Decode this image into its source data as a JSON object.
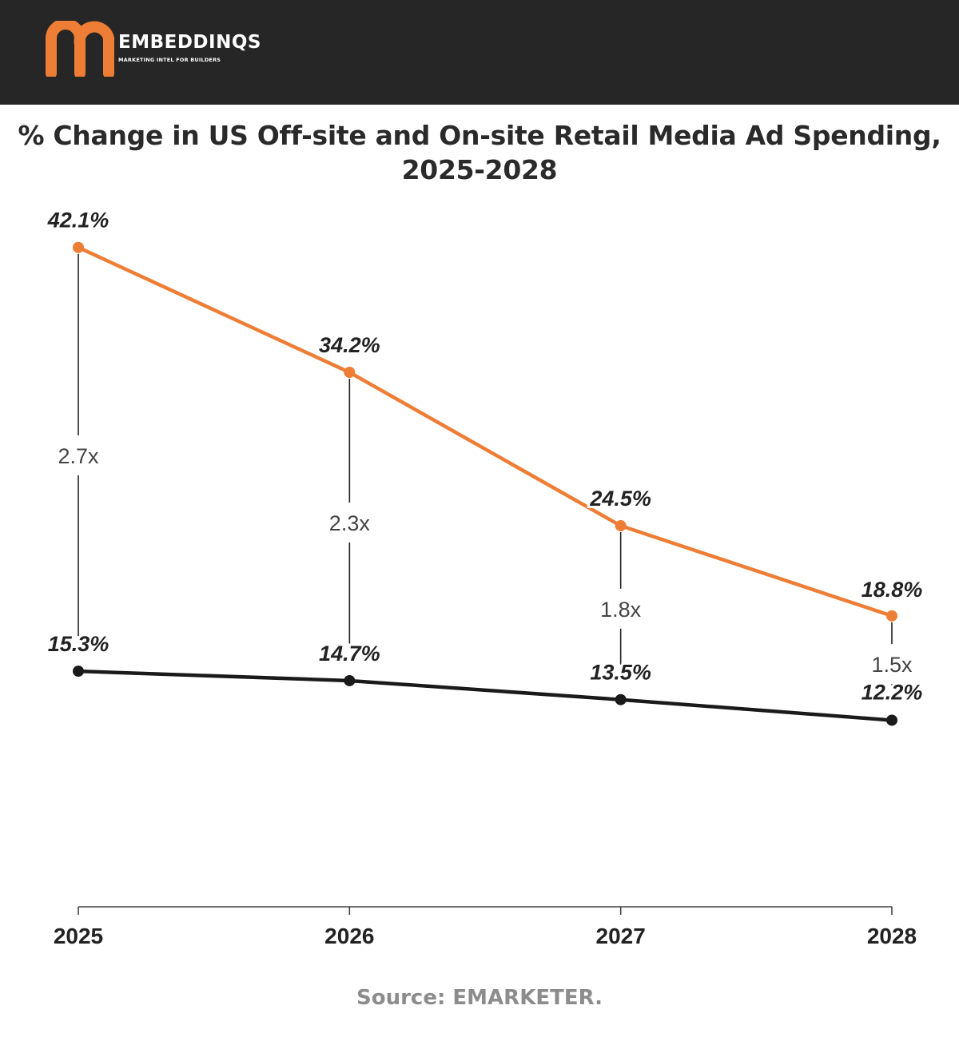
{
  "header": {
    "logo_text": "EMBEDDINQS",
    "logo_tagline": "MARKETING INTEL FOR BUILDERS"
  },
  "chart_data": {
    "type": "line",
    "title": "% Change in US Off-site and On-site Retail Media Ad Spending, 2025-2028",
    "title_line1": "% Change in US Off-site and On-site Retail Media Ad Spending,",
    "title_line2": "2025-2028",
    "categories": [
      "2025",
      "2026",
      "2027",
      "2028"
    ],
    "series": [
      {
        "name": "Off-site",
        "color": "#ee7d35",
        "values": [
          42.1,
          34.2,
          24.5,
          18.8
        ],
        "labels": [
          "42.1%",
          "34.2%",
          "24.5%",
          "18.8%"
        ]
      },
      {
        "name": "On-site",
        "color": "#1a1a1a",
        "values": [
          15.3,
          14.7,
          13.5,
          12.2
        ],
        "labels": [
          "15.3%",
          "14.7%",
          "13.5%",
          "12.2%"
        ]
      }
    ],
    "ratios": [
      "2.7x",
      "2.3x",
      "1.8x",
      "1.5x"
    ],
    "ylim": [
      5.2,
      43.6
    ],
    "xlabel": "",
    "ylabel": "",
    "grid": false
  },
  "footer": {
    "source": "Source: EMARKETER."
  }
}
